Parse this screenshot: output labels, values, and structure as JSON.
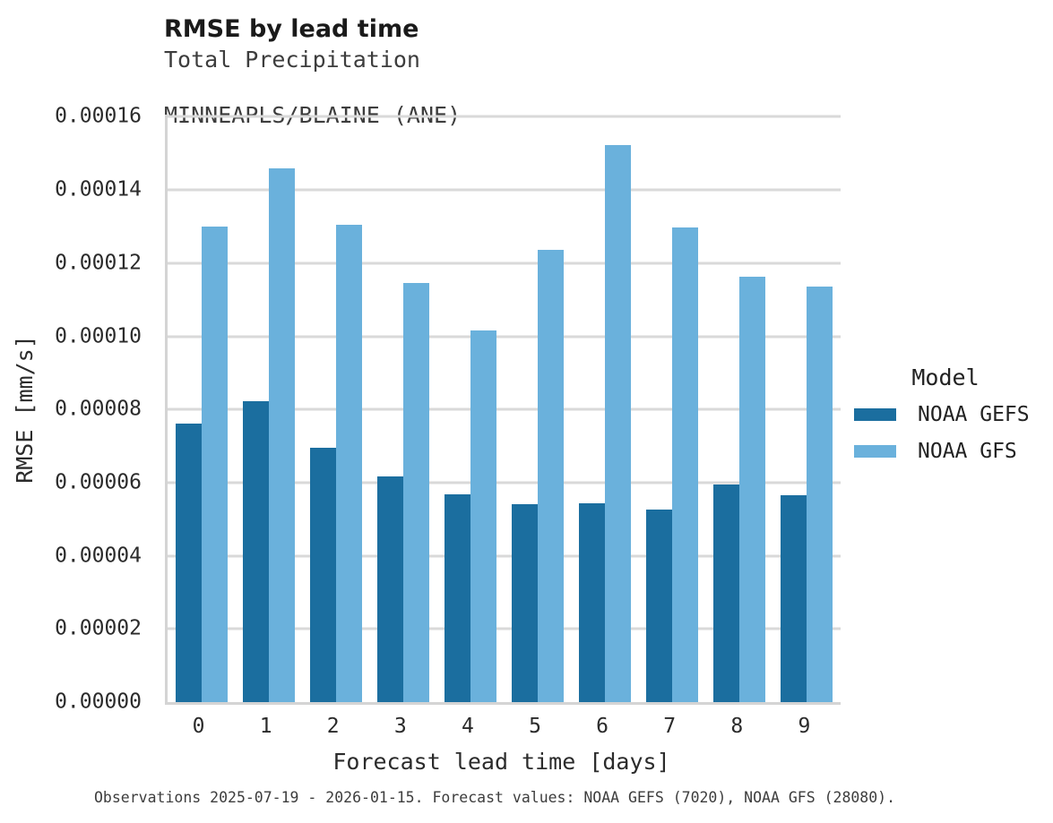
{
  "header": {
    "title": "RMSE by lead time",
    "subtitle_line1": "Total Precipitation",
    "subtitle_line2": "MINNEAPLS/BLAINE (ANE)"
  },
  "legend": {
    "title": "Model",
    "entries": [
      {
        "label": "NOAA GEFS",
        "color": "#1b6e9f"
      },
      {
        "label": "NOAA GFS",
        "color": "#6ab1dc"
      }
    ]
  },
  "footer": {
    "text": "Observations 2025-07-19 - 2026-01-15. Forecast values: NOAA GEFS (7020), NOAA GFS (28080)."
  },
  "colors": {
    "gefs_bar": "#1b6e9f",
    "gfs_bar": "#6ab1dc",
    "gridline": "#d9d9d9",
    "spine": "#d4d4d4",
    "title_text": "#1a1a1a",
    "tick_text": "#2b2b2b"
  },
  "chart_data": {
    "type": "bar",
    "title": "RMSE by lead time",
    "subtitle": [
      "Total Precipitation",
      "MINNEAPLS/BLAINE (ANE)"
    ],
    "xlabel": "Forecast lead time [days]",
    "ylabel": "RMSE [mm/s]",
    "categories": [
      "0",
      "1",
      "2",
      "3",
      "4",
      "5",
      "6",
      "7",
      "8",
      "9"
    ],
    "series": [
      {
        "name": "NOAA GEFS",
        "color": "#1b6e9f",
        "values": [
          7.61e-05,
          8.23e-05,
          6.96e-05,
          6.18e-05,
          5.69e-05,
          5.42e-05,
          5.43e-05,
          5.26e-05,
          5.96e-05,
          5.65e-05
        ]
      },
      {
        "name": "NOAA GFS",
        "color": "#6ab1dc",
        "values": [
          0.0001301,
          0.0001459,
          0.0001305,
          0.0001146,
          0.0001016,
          0.0001237,
          0.0001524,
          0.0001297,
          0.0001164,
          0.0001135
        ]
      }
    ],
    "ylim": [
      0,
      0.00016
    ],
    "ytick_step": 2e-05,
    "ytick_labels": [
      "0.00000",
      "0.00002",
      "0.00004",
      "0.00006",
      "0.00008",
      "0.00010",
      "0.00012",
      "0.00014",
      "0.00016"
    ],
    "grid": true,
    "legend_title": "Model",
    "legend_position": "right"
  }
}
